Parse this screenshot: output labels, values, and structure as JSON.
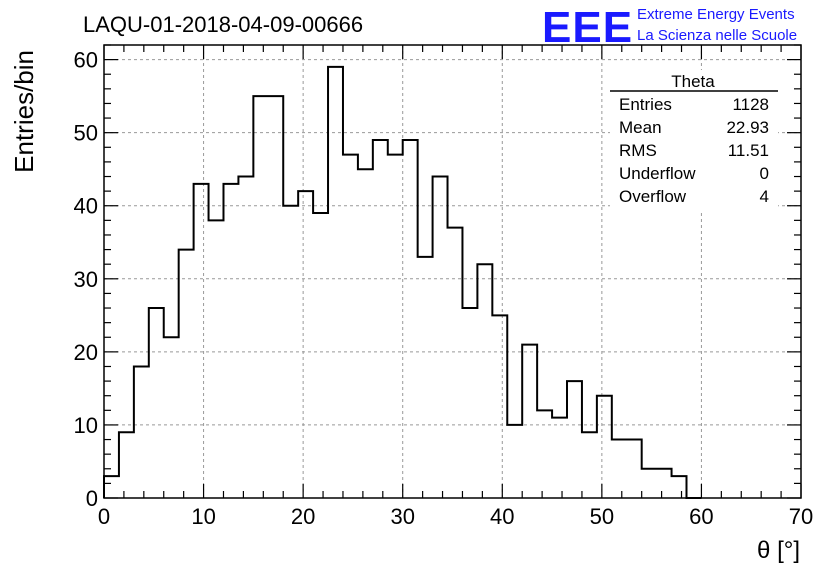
{
  "chart_data": {
    "type": "histogram",
    "title": "LAQU-01-2018-04-09-00666",
    "xlabel": "θ [°]",
    "ylabel": "Entries/bin",
    "xlim": [
      0,
      70
    ],
    "ylim": [
      0,
      62
    ],
    "grid": true,
    "x_ticks": [
      0,
      10,
      20,
      30,
      40,
      50,
      60,
      70
    ],
    "y_ticks": [
      0,
      10,
      20,
      30,
      40,
      50,
      60
    ],
    "bin_width": 1.5,
    "bin_start": 0,
    "values": [
      3,
      9,
      18,
      26,
      22,
      34,
      43,
      38,
      43,
      44,
      55,
      55,
      40,
      42,
      39,
      59,
      47,
      45,
      49,
      47,
      49,
      33,
      44,
      37,
      26,
      32,
      25,
      10,
      21,
      12,
      11,
      16,
      9,
      14,
      8,
      8,
      4,
      4,
      3,
      0
    ]
  },
  "stats_box": {
    "title": "Theta",
    "rows": [
      {
        "label": "Entries",
        "value": "1128"
      },
      {
        "label": "Mean",
        "value": "22.93"
      },
      {
        "label": "RMS",
        "value": "11.51"
      },
      {
        "label": "Underflow",
        "value": "0"
      },
      {
        "label": "Overflow",
        "value": "4"
      }
    ]
  },
  "logo": {
    "text": "EEE",
    "line1": "Extreme Energy Events",
    "line2": "La Scienza nelle Scuole",
    "color": "#1a1aff"
  }
}
